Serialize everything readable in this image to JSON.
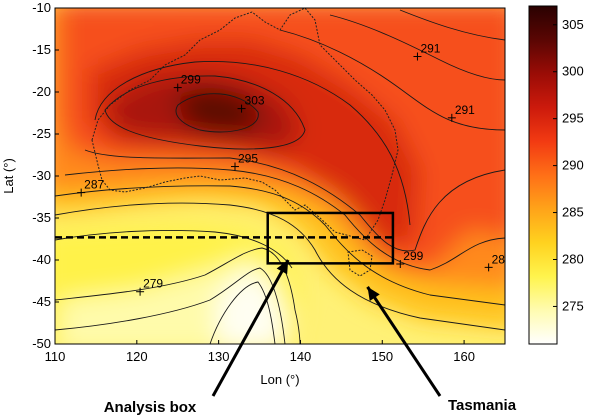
{
  "chart_data": {
    "type": "heatmap",
    "title": "",
    "xlabel": "Lon (°)",
    "ylabel": "Lat (°)",
    "xlim": [
      110,
      165
    ],
    "ylim": [
      -50,
      -10
    ],
    "xticks": [
      "110",
      "120",
      "130",
      "140",
      "150",
      "160"
    ],
    "yticks": [
      "-10",
      "-15",
      "-20",
      "-25",
      "-30",
      "-35",
      "-40",
      "-45",
      "-50"
    ],
    "colorbar": {
      "range": [
        271,
        307
      ],
      "ticks": [
        "305",
        "300",
        "295",
        "290",
        "285",
        "280",
        "275"
      ],
      "colormap": [
        "#ffffff",
        "#fffbb0",
        "#fff44d",
        "#ffd21f",
        "#ffa319",
        "#ff6f17",
        "#f23a12",
        "#cc1a0c",
        "#9a0c06",
        "#5a0603",
        "#2a0101"
      ]
    },
    "contour_labels": [
      {
        "text": "291",
        "lon": 154.3,
        "lat": -15.3
      },
      {
        "text": "299",
        "lon": 125.0,
        "lat": -19.0
      },
      {
        "text": "303",
        "lon": 132.8,
        "lat": -21.5
      },
      {
        "text": "291",
        "lon": 158.5,
        "lat": -22.6
      },
      {
        "text": "295",
        "lon": 132.0,
        "lat": -28.4
      },
      {
        "text": "287",
        "lon": 113.2,
        "lat": -31.5
      },
      {
        "text": "299",
        "lon": 152.2,
        "lat": -40.0
      },
      {
        "text": "28",
        "lon": 163.0,
        "lat": -40.4
      },
      {
        "text": "279",
        "lon": 120.4,
        "lat": -43.3
      }
    ],
    "analysis_box": {
      "lon": [
        136.0,
        151.3
      ],
      "lat": [
        -40.4,
        -34.4
      ],
      "dashed_lat": -37.3
    },
    "annotations": [
      {
        "text": "Analysis box",
        "lon": 138.5,
        "lat": -40.0
      },
      {
        "text": "Tasmania",
        "lon": 148.2,
        "lat": -43.2
      }
    ]
  }
}
